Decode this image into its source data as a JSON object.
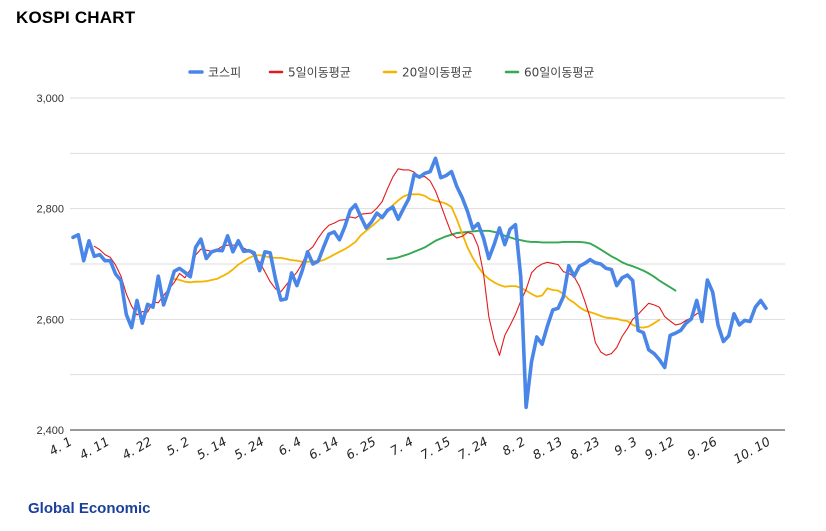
{
  "title": "KOSPI CHART",
  "brand": "Global Economic",
  "chart_data": {
    "type": "line",
    "title": "KOSPI CHART",
    "ylim": [
      2400,
      3000
    ],
    "yticks": [
      2400,
      2600,
      2800,
      3000
    ],
    "ytick_labels": [
      "2,400",
      "2,600",
      "2,800",
      "3,000"
    ],
    "grid": true,
    "legend_position": "top-center",
    "x_tick_labels": [
      "4. 1",
      "4. 11",
      "4. 22",
      "5. 2",
      "5. 14",
      "5. 24",
      "6. 4",
      "6. 14",
      "6. 25",
      "7. 4",
      "7. 15",
      "7. 24",
      "8. 2",
      "8. 13",
      "8. 23",
      "9. 3",
      "9. 12",
      "9. 26",
      "10. 10"
    ],
    "x_tick_index": [
      0,
      7,
      15,
      22,
      29,
      36,
      43,
      50,
      57,
      64,
      71,
      78,
      85,
      92,
      99,
      106,
      113,
      121,
      131
    ],
    "n_points": 134,
    "series": [
      {
        "name": "코스피",
        "color": "#4a86e8",
        "start_index": 0,
        "values": [
          2748,
          2753,
          2706,
          2742,
          2714,
          2717,
          2706,
          2706,
          2682,
          2670,
          2609,
          2585,
          2634,
          2593,
          2627,
          2622,
          2678,
          2626,
          2655,
          2687,
          2692,
          2685,
          2677,
          2730,
          2745,
          2710,
          2722,
          2725,
          2724,
          2751,
          2722,
          2742,
          2723,
          2724,
          2720,
          2688,
          2722,
          2720,
          2672,
          2635,
          2637,
          2684,
          2661,
          2688,
          2722,
          2700,
          2705,
          2730,
          2754,
          2758,
          2744,
          2768,
          2797,
          2807,
          2785,
          2765,
          2776,
          2792,
          2784,
          2797,
          2803,
          2781,
          2800,
          2818,
          2862,
          2857,
          2864,
          2867,
          2891,
          2856,
          2860,
          2867,
          2840,
          2820,
          2795,
          2764,
          2773,
          2747,
          2710,
          2735,
          2765,
          2735,
          2763,
          2771,
          2676,
          2441,
          2523,
          2568,
          2555,
          2588,
          2617,
          2620,
          2641,
          2697,
          2678,
          2696,
          2701,
          2708,
          2702,
          2700,
          2692,
          2690,
          2661,
          2675,
          2680,
          2670,
          2580,
          2576,
          2545,
          2538,
          2527,
          2513,
          2571,
          2575,
          2580,
          2593,
          2601,
          2634,
          2596,
          2671,
          2649,
          2590,
          2560,
          2570,
          2610,
          2590,
          2598,
          2596,
          2622,
          2634,
          2620
        ]
      },
      {
        "name": "5일이동평균",
        "color": "#e31a1c",
        "start_index": 4,
        "values": [
          2732,
          2726,
          2717,
          2712,
          2698,
          2678,
          2646,
          2624,
          2608,
          2614,
          2613,
          2631,
          2630,
          2643,
          2655,
          2667,
          2683,
          2675,
          2690,
          2716,
          2727,
          2725,
          2723,
          2726,
          2732,
          2734,
          2734,
          2735,
          2729,
          2724,
          2715,
          2703,
          2686,
          2668,
          2655,
          2650,
          2662,
          2674,
          2685,
          2701,
          2723,
          2731,
          2747,
          2760,
          2770,
          2774,
          2779,
          2780,
          2785,
          2783,
          2790,
          2791,
          2792,
          2801,
          2813,
          2836,
          2857,
          2872,
          2870,
          2870,
          2866,
          2857,
          2858,
          2850,
          2832,
          2807,
          2780,
          2755,
          2747,
          2750,
          2757,
          2754,
          2732,
          2683,
          2605,
          2563,
          2535,
          2571,
          2589,
          2609,
          2633,
          2654,
          2684,
          2694,
          2700,
          2703,
          2701,
          2699,
          2686,
          2683,
          2677,
          2660,
          2633,
          2603,
          2558,
          2541,
          2535,
          2538,
          2549,
          2569,
          2583,
          2600,
          2609,
          2619,
          2629,
          2626,
          2622,
          2605,
          2597,
          2590,
          2592,
          2598,
          2603,
          2610,
          2614
        ]
      },
      {
        "name": "20일이동평균",
        "color": "#f4b400",
        "start_index": 19,
        "values": [
          2673,
          2671,
          2668,
          2667,
          2668,
          2668,
          2669,
          2671,
          2673,
          2678,
          2683,
          2690,
          2699,
          2705,
          2711,
          2715,
          2716,
          2714,
          2712,
          2711,
          2711,
          2709,
          2707,
          2706,
          2704,
          2704,
          2705,
          2705,
          2707,
          2712,
          2717,
          2722,
          2727,
          2733,
          2740,
          2752,
          2760,
          2768,
          2776,
          2785,
          2796,
          2806,
          2815,
          2822,
          2826,
          2826,
          2826,
          2823,
          2817,
          2814,
          2812,
          2809,
          2803,
          2781,
          2755,
          2730,
          2711,
          2695,
          2682,
          2673,
          2667,
          2662,
          2659,
          2660,
          2660,
          2657,
          2652,
          2646,
          2641,
          2643,
          2656,
          2653,
          2652,
          2646,
          2636,
          2630,
          2622,
          2616,
          2613,
          2610,
          2606,
          2603,
          2602,
          2601,
          2598,
          2597,
          2590,
          2586,
          2585,
          2587,
          2593,
          2599
        ]
      },
      {
        "name": "60일이동평균",
        "color": "#34a853",
        "start_index": 59,
        "values": [
          2709,
          2710,
          2712,
          2715,
          2718,
          2722,
          2726,
          2730,
          2736,
          2742,
          2746,
          2750,
          2753,
          2756,
          2757,
          2758,
          2759,
          2760,
          2760,
          2760,
          2758,
          2756,
          2751,
          2748,
          2745,
          2743,
          2741,
          2740,
          2740,
          2739,
          2739,
          2739,
          2739,
          2740,
          2740,
          2740,
          2740,
          2739,
          2737,
          2732,
          2726,
          2720,
          2714,
          2709,
          2703,
          2699,
          2696,
          2692,
          2688,
          2683,
          2677,
          2670,
          2664,
          2658,
          2652
        ]
      }
    ]
  }
}
